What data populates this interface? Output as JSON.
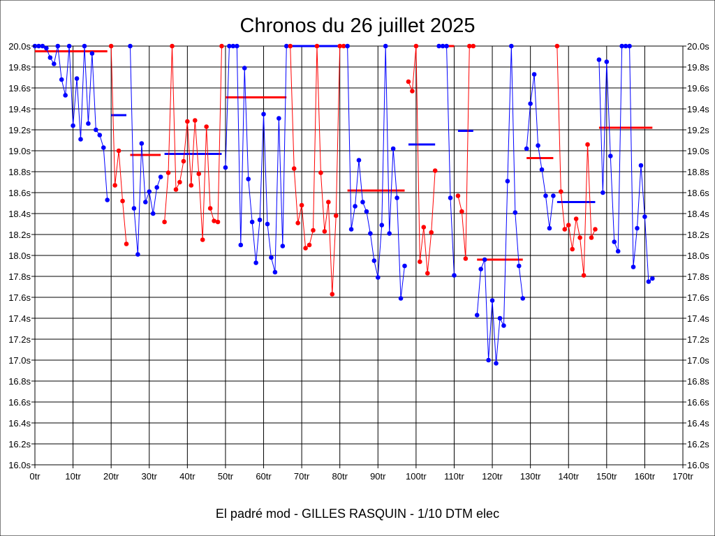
{
  "chart_data": {
    "type": "line",
    "title": "Chronos du 26 juillet 2025",
    "xlabel": "El padré mod - GILLES RASQUIN - 1/10 DTM elec",
    "ylabel": "",
    "xlim": [
      0,
      170
    ],
    "ylim": [
      16.0,
      20.0
    ],
    "x_ticks": [
      "0tr",
      "10tr",
      "20tr",
      "30tr",
      "40tr",
      "50tr",
      "60tr",
      "70tr",
      "80tr",
      "90tr",
      "100tr",
      "110tr",
      "120tr",
      "130tr",
      "140tr",
      "150tr",
      "160tr",
      "170tr"
    ],
    "y_ticks": [
      "16.0s",
      "16.2s",
      "16.4s",
      "16.6s",
      "16.8s",
      "17.0s",
      "17.2s",
      "17.4s",
      "17.6s",
      "17.8s",
      "18.0s",
      "18.2s",
      "18.4s",
      "18.6s",
      "18.8s",
      "19.0s",
      "19.2s",
      "19.4s",
      "19.6s",
      "19.8s",
      "20.0s"
    ],
    "grid": true,
    "colors": {
      "red": "#ff0000",
      "blue": "#0000ff"
    },
    "runs": [
      {
        "color": "blue",
        "start_lap": 0,
        "values": [
          20.0,
          20.0,
          20.0,
          19.98,
          19.89,
          19.83,
          20.0,
          19.68,
          19.53,
          20.0,
          19.24,
          19.69,
          19.11,
          20.0,
          19.26,
          19.93,
          19.2,
          19.15,
          19.03,
          18.53
        ]
      },
      {
        "color": "red",
        "start_lap": 20,
        "values": [
          20.0,
          18.67,
          19.0,
          18.52,
          18.11
        ]
      },
      {
        "color": "blue",
        "start_lap": 25,
        "values": [
          20.0,
          18.45,
          18.01,
          19.07,
          18.51,
          18.61,
          18.4,
          18.65,
          18.75
        ]
      },
      {
        "color": "red",
        "start_lap": 34,
        "values": [
          18.32,
          18.79,
          20.0,
          18.63,
          18.7,
          18.9,
          19.28,
          18.67,
          19.29,
          18.78,
          18.15,
          19.23,
          18.45,
          18.33,
          18.32,
          20.0
        ]
      },
      {
        "color": "blue",
        "start_lap": 50,
        "values": [
          18.84,
          20.0,
          20.0,
          20.0,
          18.1,
          19.79,
          18.73,
          18.32,
          17.93,
          18.34,
          19.35,
          18.3,
          17.98,
          17.84,
          19.31,
          18.09,
          20.0
        ]
      },
      {
        "color": "red",
        "start_lap": 67,
        "values": [
          20.0,
          18.83,
          18.31,
          18.48,
          18.07,
          18.1,
          18.24,
          20.0,
          18.79,
          18.23,
          18.51,
          17.63,
          18.38,
          20.0,
          20.0
        ]
      },
      {
        "color": "blue",
        "start_lap": 82,
        "values": [
          20.0,
          18.25,
          18.47,
          18.91,
          18.51,
          18.42,
          18.21,
          17.95,
          17.79,
          18.29,
          20.0,
          18.21,
          19.02,
          18.55,
          17.59,
          17.9
        ]
      },
      {
        "color": "red",
        "start_lap": 98,
        "values": [
          19.66,
          19.57,
          20.0,
          17.94,
          18.27,
          17.83,
          18.22,
          18.81
        ]
      },
      {
        "color": "blue",
        "start_lap": 106,
        "values": [
          20.0,
          20.0,
          20.0,
          18.55,
          17.81
        ]
      },
      {
        "color": "red",
        "start_lap": 111,
        "values": [
          18.57,
          18.42,
          17.97,
          20.0,
          20.0
        ]
      },
      {
        "color": "blue",
        "start_lap": 116,
        "values": [
          17.43,
          17.87,
          17.96,
          17.0,
          17.57,
          16.97,
          17.4,
          17.33,
          18.71,
          20.0,
          18.41,
          17.9,
          17.59
        ]
      },
      {
        "color": "blue",
        "start_lap": 129,
        "values": [
          19.02,
          19.45,
          19.73,
          19.05,
          18.82,
          18.57,
          18.26,
          18.57
        ]
      },
      {
        "color": "red",
        "start_lap": 137,
        "values": [
          20.0,
          18.61,
          18.25,
          18.29,
          18.06,
          18.35,
          18.17,
          17.81,
          19.06,
          18.17,
          18.25
        ]
      },
      {
        "color": "blue",
        "start_lap": 148,
        "values": [
          19.87,
          18.6,
          19.85,
          18.95,
          18.13,
          18.04,
          20.0,
          20.0,
          20.0,
          17.89,
          18.26,
          18.86,
          18.37,
          17.75,
          17.78
        ]
      }
    ],
    "averages": [
      {
        "color": "red",
        "from_lap": 0,
        "to_lap": 19,
        "value": 19.95
      },
      {
        "color": "blue",
        "from_lap": 20,
        "to_lap": 24,
        "value": 19.34
      },
      {
        "color": "red",
        "from_lap": 25,
        "to_lap": 33,
        "value": 18.96
      },
      {
        "color": "blue",
        "from_lap": 34,
        "to_lap": 49,
        "value": 18.97
      },
      {
        "color": "red",
        "from_lap": 50,
        "to_lap": 66,
        "value": 19.51
      },
      {
        "color": "blue",
        "from_lap": 67,
        "to_lap": 80,
        "value": 20.0
      },
      {
        "color": "red",
        "from_lap": 82,
        "to_lap": 97,
        "value": 18.62
      },
      {
        "color": "blue",
        "from_lap": 98,
        "to_lap": 105,
        "value": 19.06
      },
      {
        "color": "red",
        "from_lap": 108,
        "to_lap": 110,
        "value": 20.0
      },
      {
        "color": "blue",
        "from_lap": 111,
        "to_lap": 115,
        "value": 19.19
      },
      {
        "color": "red",
        "from_lap": 116,
        "to_lap": 128,
        "value": 17.96
      },
      {
        "color": "red",
        "from_lap": 129,
        "to_lap": 136,
        "value": 18.93
      },
      {
        "color": "blue",
        "from_lap": 137,
        "to_lap": 147,
        "value": 18.51
      },
      {
        "color": "red",
        "from_lap": 148,
        "to_lap": 162,
        "value": 19.22
      }
    ]
  }
}
